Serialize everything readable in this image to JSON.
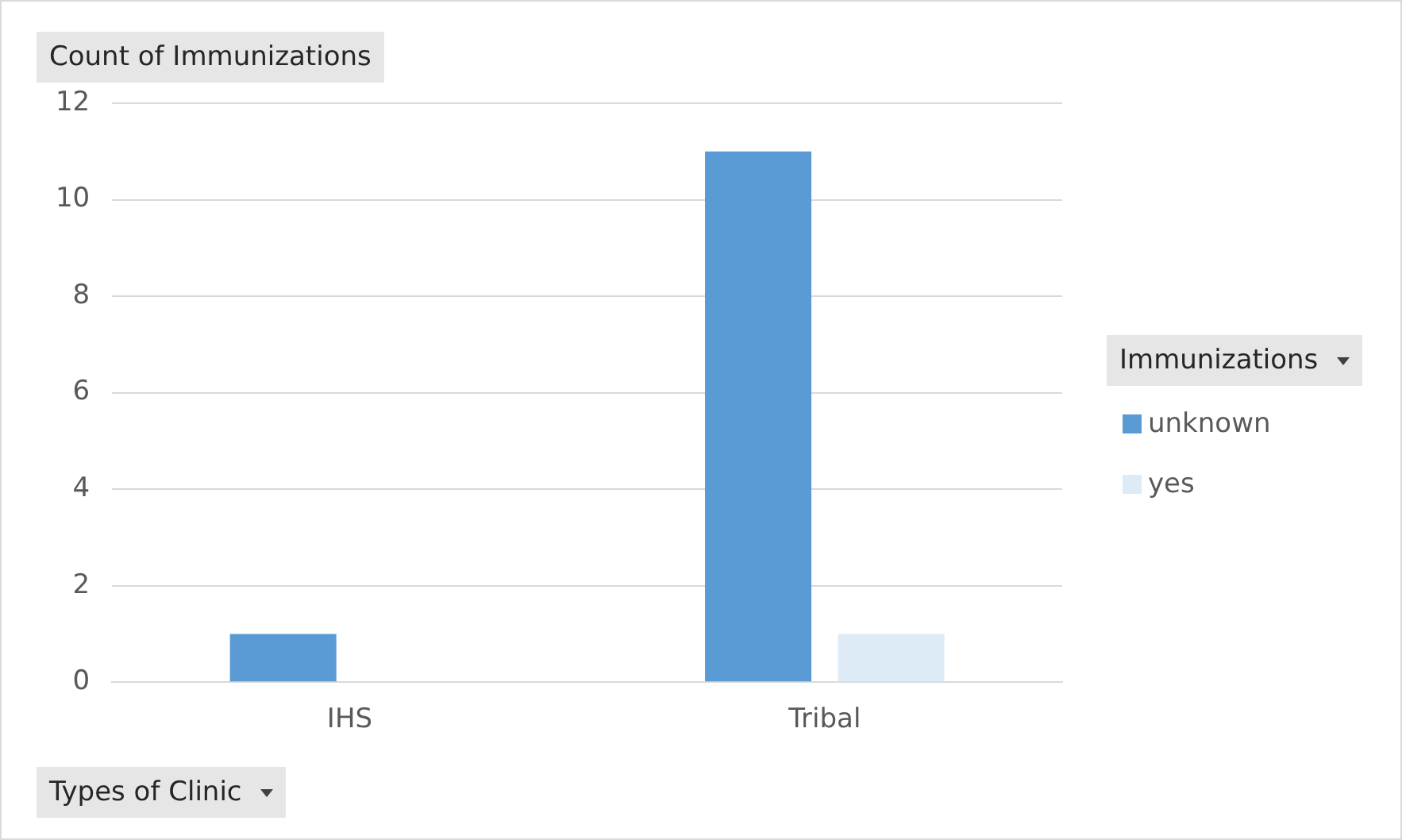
{
  "chart_data": {
    "type": "bar",
    "ylabel": "Count of Immunizations",
    "xlabel": "Types of Clinic",
    "legend_title": "Immunizations",
    "categories": [
      "IHS",
      "Tribal"
    ],
    "series": [
      {
        "name": "unknown",
        "color": "#5b9bd5",
        "values": [
          1,
          11
        ]
      },
      {
        "name": "yes",
        "color": "#ddebf7",
        "values": [
          null,
          1
        ]
      }
    ],
    "ylim": [
      0,
      12
    ],
    "yticks": [
      0,
      2,
      4,
      6,
      8,
      10,
      12
    ],
    "grid": "y",
    "legend": "right"
  }
}
